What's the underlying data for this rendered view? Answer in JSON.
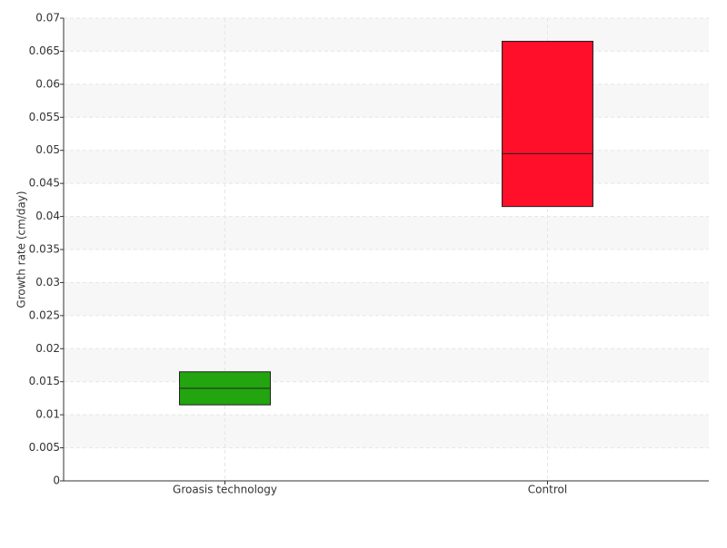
{
  "chart_data": {
    "type": "box",
    "y_label": "Growth rate (cm/day)",
    "categories": [
      "Groasis technology",
      "Control"
    ],
    "boxes": [
      {
        "color": "#22a50f",
        "q1": 0.0115,
        "median": 0.014,
        "q3": 0.0165
      },
      {
        "color": "#ff0f2a",
        "q1": 0.0415,
        "median": 0.0495,
        "q3": 0.0665
      }
    ],
    "ylim": [
      0,
      0.07
    ],
    "yticks": [
      0,
      0.005,
      0.01,
      0.015,
      0.02,
      0.025,
      0.03,
      0.035,
      0.04,
      0.045,
      0.05,
      0.055,
      0.06,
      0.065,
      0.07
    ],
    "grid": true
  }
}
